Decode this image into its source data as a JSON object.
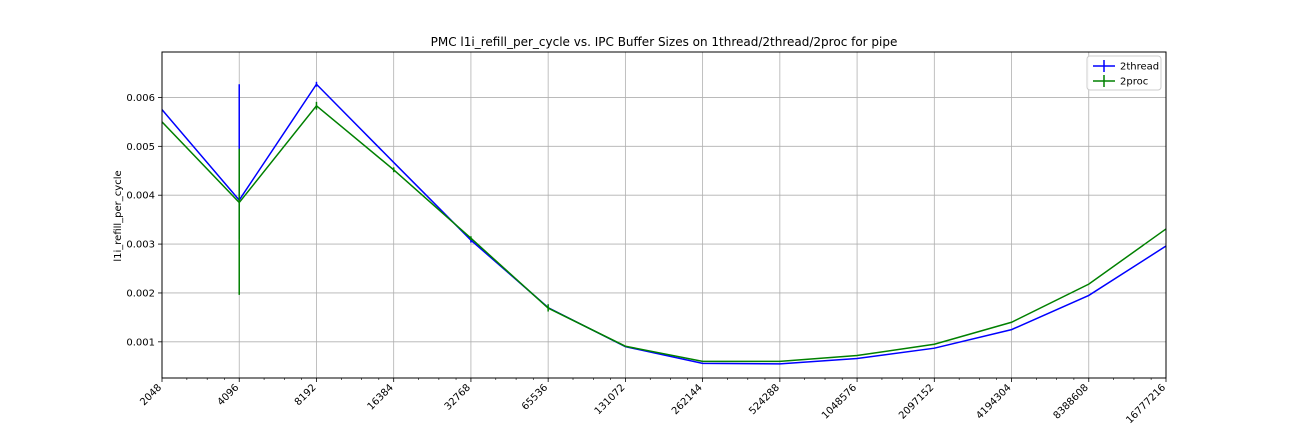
{
  "chart_data": {
    "type": "line",
    "title": "PMC l1i_refill_per_cycle vs. IPC Buffer Sizes on 1thread/2thread/2proc for pipe",
    "xlabel": "",
    "ylabel": "l1i_refill_per_cycle",
    "x_scale": "log2",
    "xlim": [
      2048,
      16777216
    ],
    "ylim": [
      0.00026,
      0.00693
    ],
    "x": [
      2048,
      4096,
      8192,
      16384,
      32768,
      65536,
      131072,
      262144,
      524288,
      1048576,
      2097152,
      4194304,
      8388608,
      16777216
    ],
    "x_tick_labels": [
      "2048",
      "4096",
      "8192",
      "16384",
      "32768",
      "65536",
      "131072",
      "262144",
      "524288",
      "1048576",
      "2097152",
      "4194304",
      "8388608",
      "16777216"
    ],
    "y_ticks": [
      0.001,
      0.002,
      0.003,
      0.004,
      0.005,
      0.006
    ],
    "y_tick_labels": [
      "0.001",
      "0.002",
      "0.003",
      "0.004",
      "0.005",
      "0.006"
    ],
    "grid": true,
    "legend_position": "top-right",
    "series": [
      {
        "name": "2thread",
        "color": "#0000ff",
        "values": [
          0.00575,
          0.0039,
          0.00627,
          0.00467,
          0.00308,
          0.0017,
          0.0009,
          0.00056,
          0.00055,
          0.00066,
          0.00087,
          0.00125,
          0.00195,
          0.00296
        ],
        "err_low": [
          0.00575,
          0.0031,
          0.00622,
          0.00467,
          0.00303,
          0.0017,
          0.0009,
          0.00056,
          0.00055,
          0.00066,
          0.00087,
          0.00125,
          0.00195,
          0.00296
        ],
        "err_high": [
          0.00575,
          0.00627,
          0.00632,
          0.00467,
          0.00313,
          0.0017,
          0.0009,
          0.00056,
          0.00055,
          0.00066,
          0.00087,
          0.00125,
          0.00195,
          0.00296
        ]
      },
      {
        "name": "2proc",
        "color": "#008000",
        "values": [
          0.0055,
          0.00385,
          0.00583,
          0.00452,
          0.00312,
          0.00169,
          0.00091,
          0.0006,
          0.0006,
          0.00072,
          0.00095,
          0.0014,
          0.00218,
          0.00331
        ],
        "err_low": [
          0.0055,
          0.00196,
          0.00575,
          0.00447,
          0.00308,
          0.00162,
          0.00091,
          0.0006,
          0.0006,
          0.00072,
          0.00095,
          0.0014,
          0.00218,
          0.00331
        ],
        "err_high": [
          0.0055,
          0.00495,
          0.00591,
          0.00457,
          0.00316,
          0.00177,
          0.00091,
          0.0006,
          0.0006,
          0.00072,
          0.00095,
          0.0014,
          0.00218,
          0.00331
        ]
      }
    ]
  }
}
